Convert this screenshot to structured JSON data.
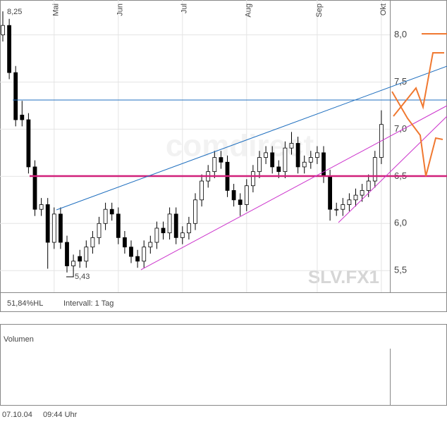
{
  "chart_data": {
    "type": "candlestick",
    "symbol": "SLV.FX1",
    "watermark": "comdirect",
    "high_label": "8,25",
    "low_label": "5,43",
    "range_info": "51,84%HL",
    "interval": "Intervall: 1 Tag",
    "volume_title": "Volumen",
    "date": "07.10.04",
    "time": "09:44 Uhr",
    "categories": [
      null,
      null,
      null,
      null,
      null,
      null,
      null,
      null,
      "Mai",
      null,
      null,
      null,
      null,
      null,
      null,
      null,
      null,
      null,
      "Jun",
      null,
      null,
      null,
      null,
      null,
      null,
      null,
      null,
      null,
      "Jul",
      null,
      null,
      null,
      null,
      null,
      null,
      null,
      null,
      null,
      "Aug",
      null,
      null,
      null,
      null,
      null,
      null,
      null,
      null,
      null,
      null,
      "Sep",
      null,
      null,
      null,
      null,
      null,
      null,
      null,
      null,
      null,
      "Okt"
    ],
    "open": [
      8.0,
      8.1,
      7.6,
      7.15,
      7.1,
      6.6,
      6.15,
      6.2,
      5.8,
      6.1,
      5.8,
      5.55,
      5.65,
      5.6,
      5.75,
      5.85,
      6.0,
      6.15,
      6.1,
      5.85,
      5.75,
      5.65,
      5.6,
      5.75,
      5.8,
      5.95,
      5.9,
      6.1,
      5.85,
      5.9,
      6.0,
      6.25,
      6.45,
      6.55,
      6.7,
      6.65,
      6.35,
      6.25,
      6.2,
      6.4,
      6.55,
      6.7,
      6.75,
      6.6,
      6.55,
      6.8,
      6.85,
      6.6,
      6.65,
      6.7,
      6.75,
      6.5,
      6.15,
      6.15,
      6.2,
      6.25,
      6.3,
      6.35,
      6.45,
      6.7
    ],
    "high": [
      8.25,
      8.17,
      7.67,
      7.3,
      7.17,
      6.67,
      6.27,
      6.27,
      6.17,
      6.17,
      5.87,
      5.67,
      5.72,
      5.82,
      5.92,
      6.07,
      6.22,
      6.22,
      6.17,
      5.92,
      5.82,
      5.72,
      5.82,
      5.87,
      6.02,
      6.02,
      6.17,
      6.17,
      5.97,
      6.07,
      6.32,
      6.52,
      6.62,
      6.77,
      6.77,
      6.72,
      6.42,
      6.32,
      6.47,
      6.62,
      6.77,
      6.82,
      6.82,
      6.67,
      6.87,
      6.97,
      6.92,
      6.72,
      6.77,
      6.82,
      6.82,
      6.57,
      6.22,
      6.27,
      6.32,
      6.37,
      6.42,
      6.52,
      6.77,
      7.2
    ],
    "low": [
      7.93,
      7.53,
      7.03,
      7.03,
      6.53,
      6.08,
      6.08,
      5.52,
      5.73,
      5.73,
      5.48,
      5.43,
      5.53,
      5.53,
      5.68,
      5.78,
      5.93,
      6.03,
      5.78,
      5.68,
      5.58,
      5.53,
      5.53,
      5.68,
      5.73,
      5.83,
      5.83,
      5.78,
      5.78,
      5.83,
      5.93,
      6.18,
      6.38,
      6.48,
      6.58,
      6.28,
      6.18,
      6.08,
      6.13,
      6.33,
      6.48,
      6.63,
      6.53,
      6.48,
      6.48,
      6.73,
      6.53,
      6.53,
      6.58,
      6.63,
      6.43,
      6.03,
      6.08,
      6.08,
      6.13,
      6.18,
      6.23,
      6.28,
      6.38,
      6.63
    ],
    "close": [
      8.1,
      7.6,
      7.1,
      7.1,
      6.6,
      6.15,
      6.2,
      5.8,
      6.1,
      5.8,
      5.55,
      5.6,
      5.6,
      5.75,
      5.85,
      6.0,
      6.15,
      6.1,
      5.85,
      5.75,
      5.65,
      5.6,
      5.75,
      5.8,
      5.95,
      5.9,
      6.1,
      5.85,
      5.9,
      6.0,
      6.25,
      6.45,
      6.55,
      6.7,
      6.65,
      6.35,
      6.25,
      6.2,
      6.4,
      6.55,
      6.7,
      6.75,
      6.6,
      6.55,
      6.8,
      6.85,
      6.6,
      6.65,
      6.7,
      6.75,
      6.5,
      6.15,
      6.15,
      6.2,
      6.25,
      6.3,
      6.35,
      6.45,
      6.7,
      7.05
    ],
    "ylim": [
      5.27,
      8.37
    ],
    "yticks": [
      {
        "value": 5.5,
        "label": "5,5"
      },
      {
        "value": 6.0,
        "label": "6,0"
      },
      {
        "value": 6.5,
        "label": "6,5"
      },
      {
        "value": 7.0,
        "label": "7,0"
      },
      {
        "value": 7.5,
        "label": "7,5"
      },
      {
        "value": 8.0,
        "label": "8,0"
      }
    ],
    "grid": true,
    "up_color": "#ffffff",
    "down_color": "#000000"
  }
}
